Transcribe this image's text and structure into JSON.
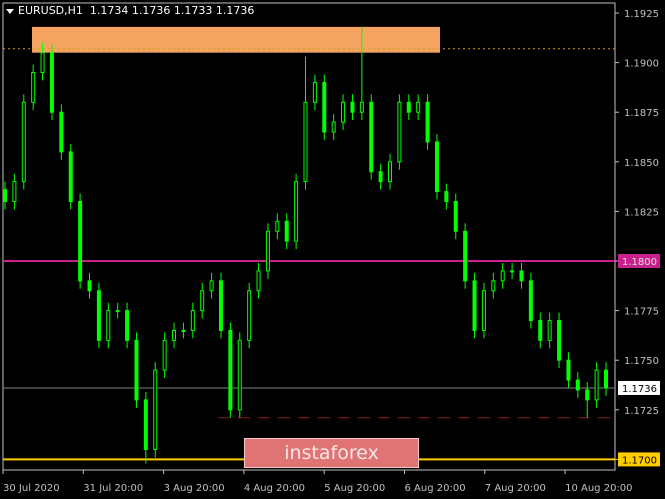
{
  "header": {
    "symbol": "EURUSD,H1",
    "ohlc": "1.1734 1.1736 1.1733 1.1736"
  },
  "watermark": "instaforex",
  "colors": {
    "background": "#000000",
    "candle": "#00ff00",
    "axis": "#c0c0c0",
    "resistance_zone": "#f4a460",
    "line_1800": "#c8208c",
    "line_1700": "#ffcc00",
    "dashed_support": "#8b1a1a",
    "current_price": "#808080"
  },
  "chart_data": {
    "type": "candlestick",
    "title": "EURUSD,H1",
    "ylim": [
      1.1688,
      1.1935
    ],
    "y_ticks": [
      "1.1925",
      "1.1900",
      "1.1875",
      "1.1850",
      "1.1825",
      "1.1800",
      "1.1775",
      "1.1750",
      "1.1725",
      "1.1700"
    ],
    "x_ticks": [
      "30 Jul 2020",
      "31 Jul 20:00",
      "3 Aug 20:00",
      "4 Aug 20:00",
      "5 Aug 20:00",
      "6 Aug 20:00",
      "7 Aug 20:00",
      "10 Aug 20:00"
    ],
    "grid": false,
    "closes": [
      1.183,
      1.184,
      1.188,
      1.1895,
      1.1905,
      1.1875,
      1.1855,
      1.183,
      1.179,
      1.1785,
      1.176,
      1.1775,
      1.1775,
      1.176,
      1.173,
      1.1705,
      1.1745,
      1.176,
      1.1765,
      1.1765,
      1.1775,
      1.1785,
      1.179,
      1.1765,
      1.1725,
      1.176,
      1.1785,
      1.1795,
      1.1815,
      1.182,
      1.181,
      1.184,
      1.188,
      1.189,
      1.1865,
      1.187,
      1.188,
      1.1875,
      1.188,
      1.1845,
      1.184,
      1.185,
      1.188,
      1.1875,
      1.188,
      1.186,
      1.1835,
      1.183,
      1.1815,
      1.179,
      1.1765,
      1.1785,
      1.179,
      1.1795,
      1.1795,
      1.179,
      1.177,
      1.176,
      1.177,
      1.175,
      1.174,
      1.1735,
      1.173,
      1.1745,
      1.1736
    ],
    "notable_highs": {
      "4": 1.191,
      "38": 1.1918,
      "32": 1.1903
    },
    "notable_lows": {
      "15": 1.1698,
      "24": 1.1721,
      "62": 1.1721
    },
    "levels": [
      {
        "label": "1.1800",
        "price": 1.18,
        "style": "solid",
        "color": "#c8208c"
      },
      {
        "label": "1.1700",
        "price": 1.17,
        "style": "solid",
        "color": "#ffcc00"
      },
      {
        "label": "1.1736",
        "price": 1.1736,
        "style": "current",
        "color": "#808080"
      },
      {
        "price": 1.1721,
        "style": "dashed",
        "color": "#8b1a1a"
      },
      {
        "price": 1.1907,
        "style": "dotted",
        "color": "#d4a017"
      }
    ],
    "zone": {
      "top": 1.1918,
      "bottom": 1.1905,
      "color": "#f4a460"
    }
  }
}
